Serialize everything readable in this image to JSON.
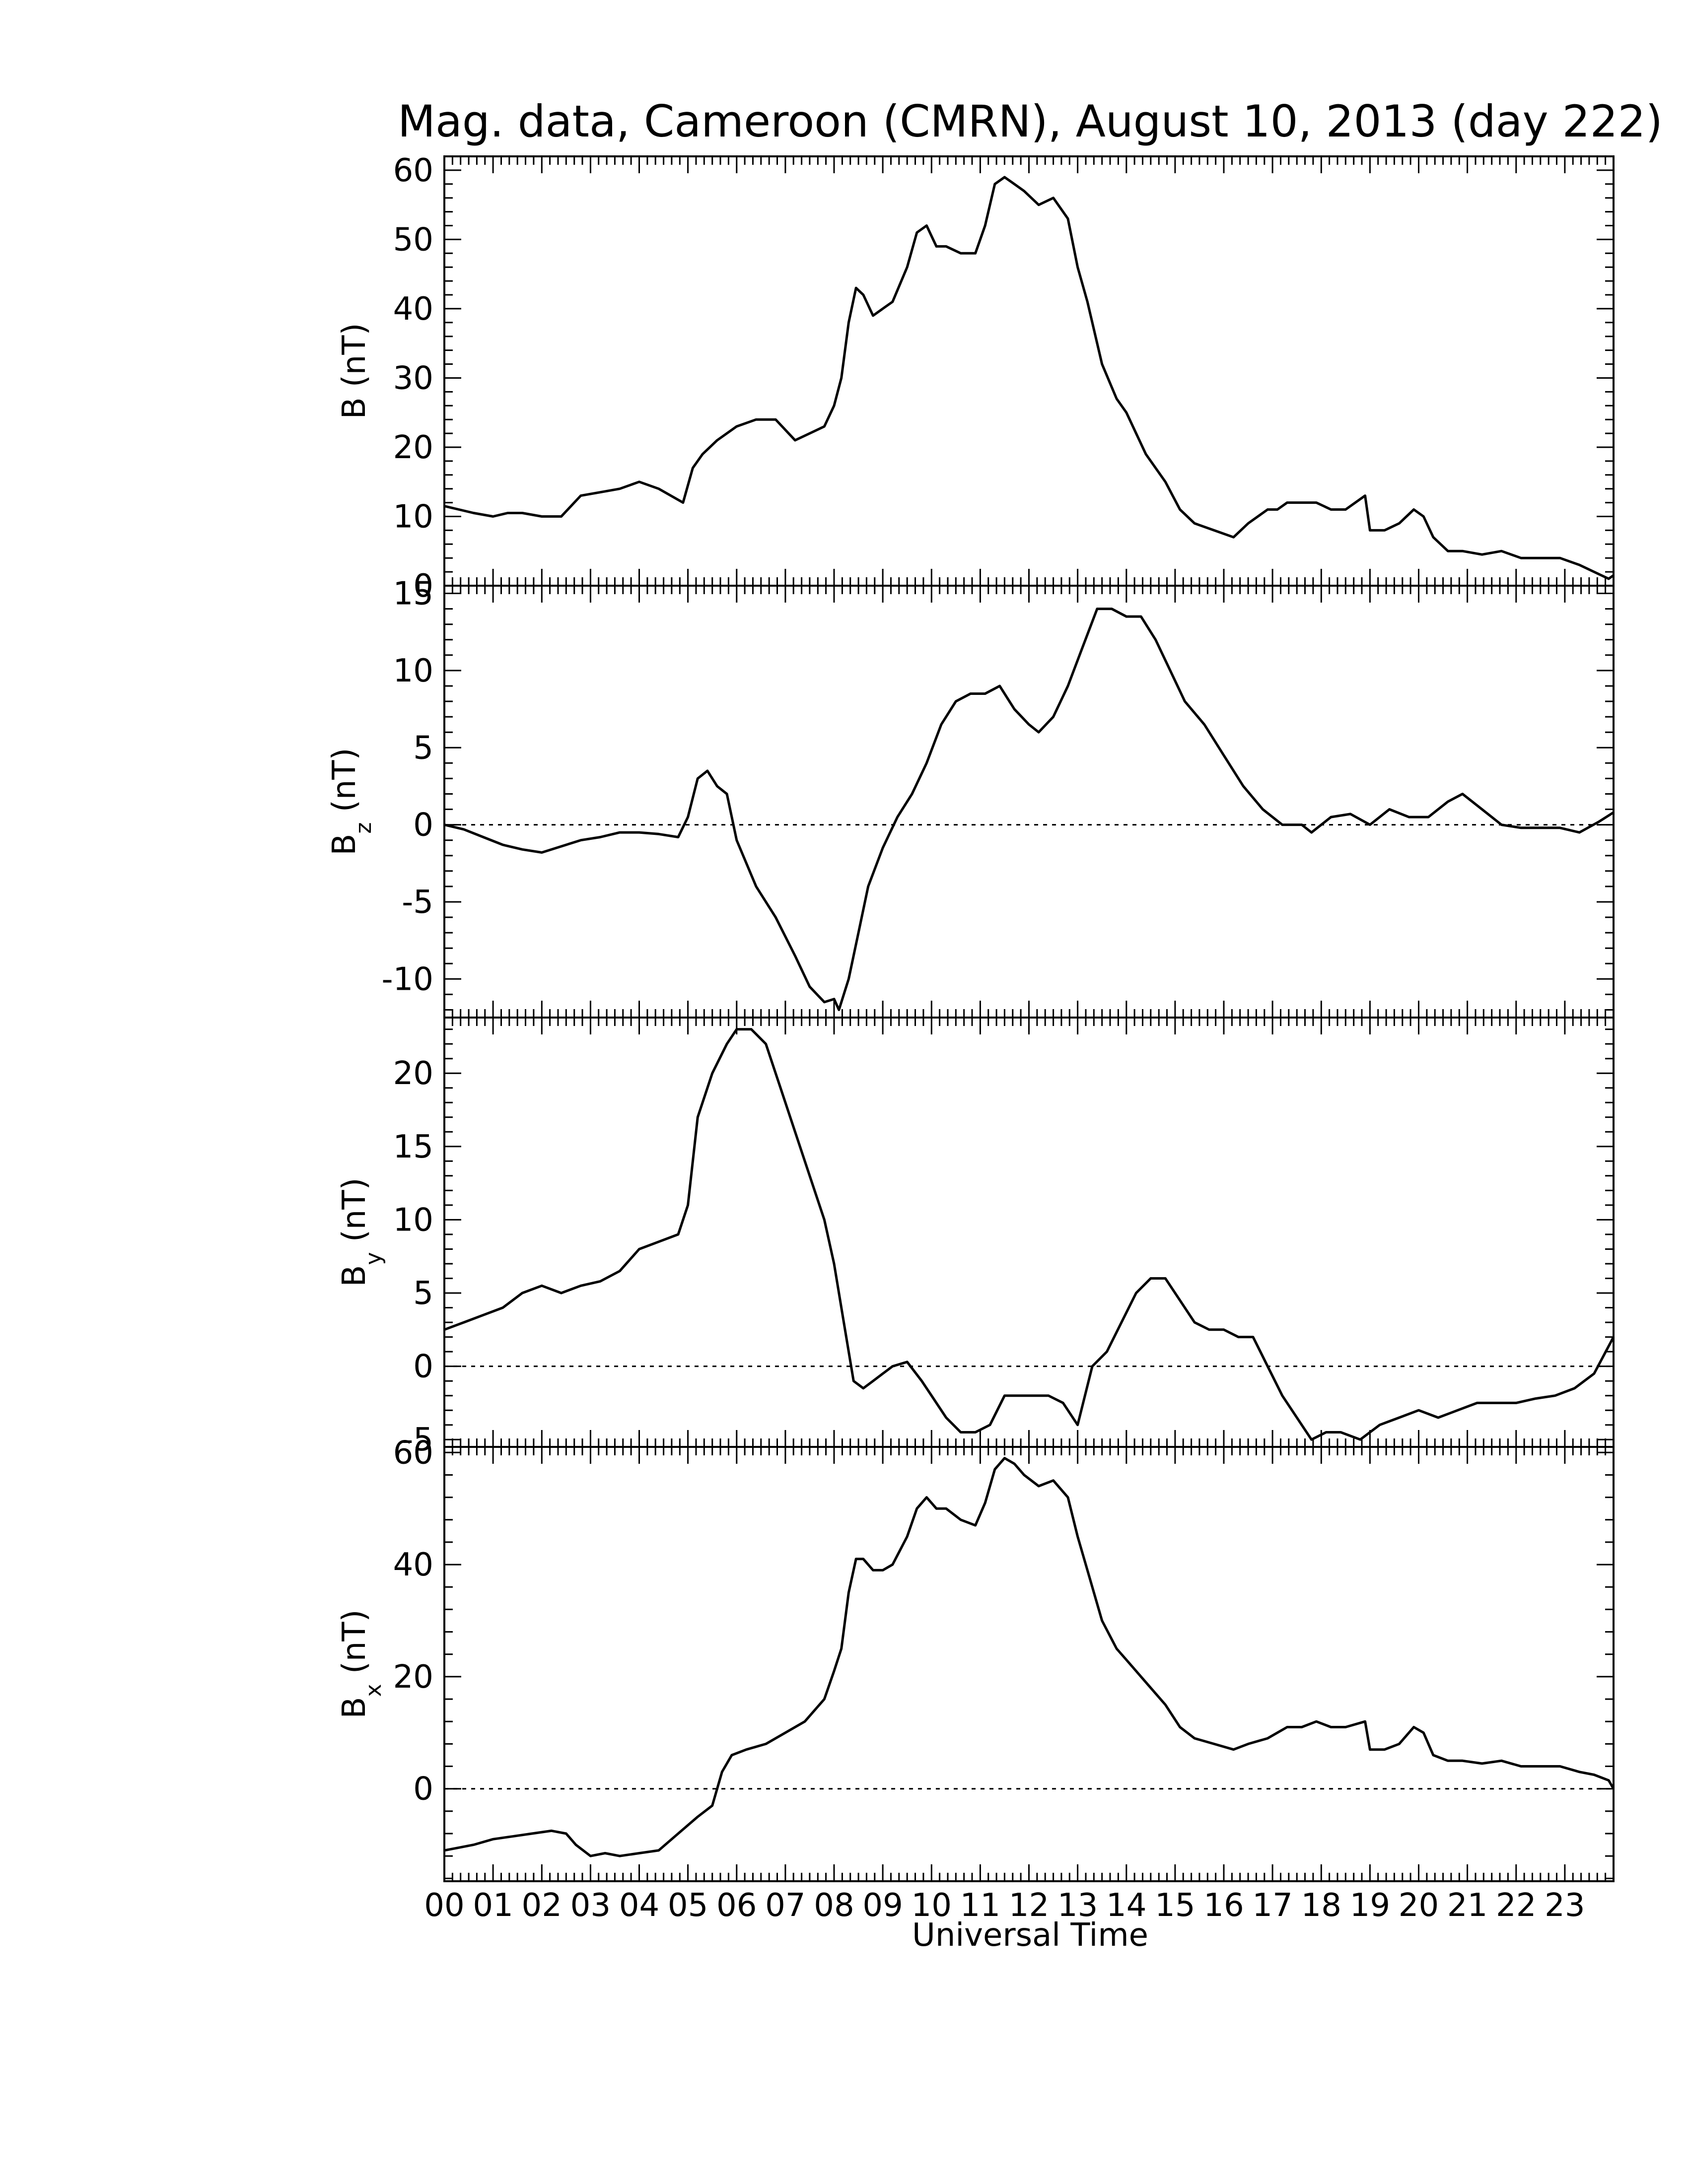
{
  "figure": {
    "title": "Mag. data, Cameroon (CMRN), August 10, 2013 (day 222)",
    "xlabel": "Universal Time"
  },
  "chart_data": [
    {
      "type": "line",
      "label": {
        "base": "B",
        "sub": "",
        "unit": " (nT)"
      },
      "ylim": [
        0,
        62
      ],
      "yticks": [
        0,
        10,
        20,
        30,
        40,
        50,
        60
      ],
      "zero_line": false,
      "xlim": [
        0,
        24
      ],
      "xtick_labels": [
        "00",
        "01",
        "02",
        "03",
        "04",
        "05",
        "06",
        "07",
        "08",
        "09",
        "10",
        "11",
        "12",
        "13",
        "14",
        "15",
        "16",
        "17",
        "18",
        "19",
        "20",
        "21",
        "22",
        "23"
      ],
      "series": [
        {
          "x": [
            0,
            0.3,
            0.6,
            1.0,
            1.3,
            1.6,
            2.0,
            2.4,
            2.8,
            3.2,
            3.6,
            4.0,
            4.4,
            4.9,
            5.1,
            5.3,
            5.6,
            6.0,
            6.4,
            6.8,
            7.2,
            7.5,
            7.8,
            8.0,
            8.15,
            8.3,
            8.45,
            8.6,
            8.8,
            9.0,
            9.2,
            9.5,
            9.7,
            9.9,
            10.1,
            10.3,
            10.6,
            10.9,
            11.1,
            11.3,
            11.5,
            11.7,
            11.9,
            12.2,
            12.5,
            12.8,
            13.0,
            13.2,
            13.5,
            13.8,
            14.0,
            14.4,
            14.8,
            15.1,
            15.4,
            15.8,
            16.2,
            16.5,
            16.9,
            17.1,
            17.3,
            17.6,
            17.9,
            18.2,
            18.5,
            18.9,
            19.0,
            19.3,
            19.6,
            19.9,
            20.1,
            20.3,
            20.6,
            20.9,
            21.3,
            21.7,
            22.1,
            22.5,
            22.9,
            23.3,
            23.6,
            23.9,
            24.0
          ],
          "y": [
            11.5,
            11,
            10.5,
            10,
            10.5,
            10.5,
            10,
            10,
            13,
            13.5,
            14,
            15,
            14,
            12,
            17,
            19,
            21,
            23,
            24,
            24,
            21,
            22,
            23,
            26,
            30,
            38,
            43,
            42,
            39,
            40,
            41,
            46,
            51,
            52,
            49,
            49,
            48,
            48,
            52,
            58,
            59,
            58,
            57,
            55,
            56,
            53,
            46,
            41,
            32,
            27,
            25,
            19,
            15,
            11,
            9,
            8,
            7,
            9,
            11,
            11,
            12,
            12,
            12,
            11,
            11,
            13,
            8,
            8,
            9,
            11,
            10,
            7,
            5,
            5,
            4.5,
            5,
            4,
            4,
            4,
            3,
            2,
            1,
            1.5
          ]
        }
      ]
    },
    {
      "type": "line",
      "label": {
        "base": "B",
        "sub": "z",
        "unit": " (nT)"
      },
      "ylim": [
        -12.5,
        15.5
      ],
      "yticks": [
        -10,
        -5,
        0,
        5,
        10,
        15
      ],
      "zero_line": true,
      "xlim": [
        0,
        24
      ],
      "xtick_labels": [
        "00",
        "01",
        "02",
        "03",
        "04",
        "05",
        "06",
        "07",
        "08",
        "09",
        "10",
        "11",
        "12",
        "13",
        "14",
        "15",
        "16",
        "17",
        "18",
        "19",
        "20",
        "21",
        "22",
        "23"
      ],
      "series": [
        {
          "x": [
            0,
            0.4,
            0.8,
            1.2,
            1.6,
            2.0,
            2.4,
            2.8,
            3.2,
            3.6,
            4.0,
            4.4,
            4.8,
            5.0,
            5.2,
            5.4,
            5.6,
            5.8,
            6.0,
            6.4,
            6.8,
            7.2,
            7.5,
            7.8,
            8.0,
            8.1,
            8.3,
            8.5,
            8.7,
            9.0,
            9.3,
            9.6,
            9.9,
            10.2,
            10.5,
            10.8,
            11.1,
            11.4,
            11.7,
            12.0,
            12.2,
            12.5,
            12.8,
            13.1,
            13.4,
            13.7,
            14.0,
            14.3,
            14.6,
            14.9,
            15.2,
            15.6,
            16.0,
            16.4,
            16.8,
            17.2,
            17.6,
            17.8,
            18.2,
            18.6,
            19.0,
            19.4,
            19.8,
            20.2,
            20.6,
            20.9,
            21.3,
            21.7,
            22.1,
            22.5,
            22.9,
            23.3,
            23.7,
            24.0
          ],
          "y": [
            0,
            -0.3,
            -0.8,
            -1.3,
            -1.6,
            -1.8,
            -1.4,
            -1,
            -0.8,
            -0.5,
            -0.5,
            -0.6,
            -0.8,
            0.5,
            3,
            3.5,
            2.5,
            2,
            -1,
            -4,
            -6,
            -8.5,
            -10.5,
            -11.5,
            -11.3,
            -12,
            -10,
            -7,
            -4,
            -1.5,
            0.5,
            2,
            4,
            6.5,
            8,
            8.5,
            8.5,
            9,
            7.5,
            6.5,
            6,
            7,
            9,
            11.5,
            14,
            14,
            13.5,
            13.5,
            12,
            10,
            8,
            6.5,
            4.5,
            2.5,
            1,
            0,
            0,
            -0.5,
            0.5,
            0.7,
            0,
            1,
            0.5,
            0.5,
            1.5,
            2,
            1,
            0,
            -0.2,
            -0.2,
            -0.2,
            -0.5,
            0.2,
            0.8
          ]
        }
      ]
    },
    {
      "type": "line",
      "label": {
        "base": "B",
        "sub": "y",
        "unit": " (nT)"
      },
      "ylim": [
        -5.5,
        23.8
      ],
      "yticks": [
        -5,
        0,
        5,
        10,
        15,
        20
      ],
      "zero_line": true,
      "xlim": [
        0,
        24
      ],
      "xtick_labels": [
        "00",
        "01",
        "02",
        "03",
        "04",
        "05",
        "06",
        "07",
        "08",
        "09",
        "10",
        "11",
        "12",
        "13",
        "14",
        "15",
        "16",
        "17",
        "18",
        "19",
        "20",
        "21",
        "22",
        "23"
      ],
      "series": [
        {
          "x": [
            0,
            0.4,
            0.8,
            1.2,
            1.6,
            2.0,
            2.4,
            2.8,
            3.2,
            3.6,
            4.0,
            4.4,
            4.8,
            5.0,
            5.2,
            5.5,
            5.8,
            6.0,
            6.3,
            6.6,
            6.9,
            7.2,
            7.5,
            7.8,
            8.0,
            8.2,
            8.4,
            8.6,
            8.8,
            9.0,
            9.2,
            9.5,
            9.8,
            10.0,
            10.3,
            10.6,
            10.9,
            11.2,
            11.5,
            11.8,
            12.1,
            12.4,
            12.7,
            13.0,
            13.3,
            13.6,
            13.9,
            14.2,
            14.5,
            14.8,
            15.1,
            15.4,
            15.7,
            16.0,
            16.3,
            16.6,
            16.9,
            17.2,
            17.5,
            17.8,
            18.1,
            18.4,
            18.8,
            19.2,
            19.6,
            20.0,
            20.4,
            20.8,
            21.2,
            21.6,
            22.0,
            22.4,
            22.8,
            23.2,
            23.6,
            24.0
          ],
          "y": [
            2.5,
            3,
            3.5,
            4,
            5,
            5.5,
            5,
            5.5,
            5.8,
            6.5,
            8,
            8.5,
            9,
            11,
            17,
            20,
            22,
            23,
            23,
            22,
            19,
            16,
            13,
            10,
            7,
            3,
            -1,
            -1.5,
            -1,
            -0.5,
            0,
            0.3,
            -1,
            -2,
            -3.5,
            -4.5,
            -4.5,
            -4,
            -2,
            -2,
            -2,
            -2,
            -2.5,
            -4,
            0,
            1,
            3,
            5,
            6,
            6,
            4.5,
            3,
            2.5,
            2.5,
            2,
            2,
            0,
            -2,
            -3.5,
            -5,
            -4.5,
            -4.5,
            -5,
            -4,
            -3.5,
            -3,
            -3.5,
            -3,
            -2.5,
            -2.5,
            -2.5,
            -2.2,
            -2,
            -1.5,
            -0.5,
            2
          ]
        }
      ]
    },
    {
      "type": "line",
      "label": {
        "base": "B",
        "sub": "x",
        "unit": " (nT)"
      },
      "ylim": [
        -16.5,
        61
      ],
      "yticks": [
        0,
        20,
        40,
        60
      ],
      "zero_line": true,
      "xlim": [
        0,
        24
      ],
      "xtick_labels": [
        "00",
        "01",
        "02",
        "03",
        "04",
        "05",
        "06",
        "07",
        "08",
        "09",
        "10",
        "11",
        "12",
        "13",
        "14",
        "15",
        "16",
        "17",
        "18",
        "19",
        "20",
        "21",
        "22",
        "23"
      ],
      "series": [
        {
          "x": [
            0,
            0.3,
            0.6,
            1.0,
            1.4,
            1.8,
            2.2,
            2.5,
            2.7,
            3.0,
            3.3,
            3.6,
            4.0,
            4.4,
            4.8,
            5.2,
            5.5,
            5.6,
            5.7,
            5.9,
            6.2,
            6.6,
            7.0,
            7.4,
            7.8,
            8.0,
            8.15,
            8.3,
            8.45,
            8.6,
            8.8,
            9.0,
            9.2,
            9.5,
            9.7,
            9.9,
            10.1,
            10.3,
            10.6,
            10.9,
            11.1,
            11.3,
            11.5,
            11.7,
            11.9,
            12.2,
            12.5,
            12.8,
            13.0,
            13.2,
            13.5,
            13.8,
            14.0,
            14.4,
            14.8,
            15.1,
            15.4,
            15.8,
            16.2,
            16.5,
            16.9,
            17.1,
            17.3,
            17.6,
            17.9,
            18.2,
            18.5,
            18.9,
            19.0,
            19.3,
            19.6,
            19.9,
            20.1,
            20.3,
            20.6,
            20.9,
            21.3,
            21.7,
            22.1,
            22.5,
            22.9,
            23.3,
            23.6,
            23.9,
            24.0
          ],
          "y": [
            -11,
            -10.5,
            -10,
            -9,
            -8.5,
            -8,
            -7.5,
            -8,
            -10,
            -12,
            -11.5,
            -12,
            -11.5,
            -11,
            -8,
            -5,
            -3,
            0,
            3,
            6,
            7,
            8,
            10,
            12,
            16,
            21,
            25,
            35,
            41,
            41,
            39,
            39,
            40,
            45,
            50,
            52,
            50,
            50,
            48,
            47,
            51,
            57,
            59,
            58,
            56,
            54,
            55,
            52,
            45,
            39,
            30,
            25,
            23,
            19,
            15,
            11,
            9,
            8,
            7,
            8,
            9,
            10,
            11,
            11,
            12,
            11,
            11,
            12,
            7,
            7,
            8,
            11,
            10,
            6,
            5,
            5,
            4.5,
            5,
            4,
            4,
            4,
            3,
            2.5,
            1.5,
            0
          ]
        }
      ]
    }
  ]
}
